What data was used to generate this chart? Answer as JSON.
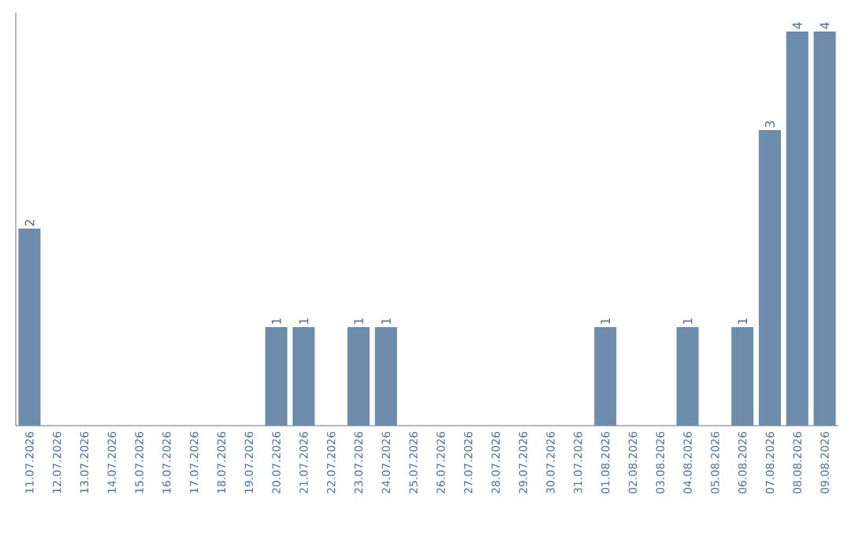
{
  "chart_data": {
    "type": "bar",
    "categories": [
      "11.07.2026",
      "12.07.2026",
      "13.07.2026",
      "14.07.2026",
      "15.07.2026",
      "16.07.2026",
      "17.07.2026",
      "18.07.2026",
      "19.07.2026",
      "20.07.2026",
      "21.07.2026",
      "22.07.2026",
      "23.07.2026",
      "24.07.2026",
      "25.07.2026",
      "26.07.2026",
      "27.07.2026",
      "28.07.2026",
      "29.07.2026",
      "30.07.2026",
      "31.07.2026",
      "01.08.2026",
      "02.08.2026",
      "03.08.2026",
      "04.08.2026",
      "05.08.2026",
      "06.08.2026",
      "07.08.2026",
      "08.08.2026",
      "09.08.2026"
    ],
    "values": [
      2,
      0,
      0,
      0,
      0,
      0,
      0,
      0,
      0,
      1,
      1,
      0,
      1,
      1,
      0,
      0,
      0,
      0,
      0,
      0,
      0,
      1,
      0,
      0,
      1,
      0,
      1,
      3,
      4,
      4
    ],
    "value_labels": [
      "2",
      null,
      null,
      null,
      null,
      null,
      null,
      null,
      null,
      "1",
      "1",
      null,
      "1",
      "1",
      null,
      null,
      null,
      null,
      null,
      null,
      null,
      "1",
      null,
      null,
      "1",
      null,
      "1",
      "3",
      "4",
      "4"
    ],
    "color": "#6d8cab",
    "grid": false,
    "tick_labels": "x"
  }
}
